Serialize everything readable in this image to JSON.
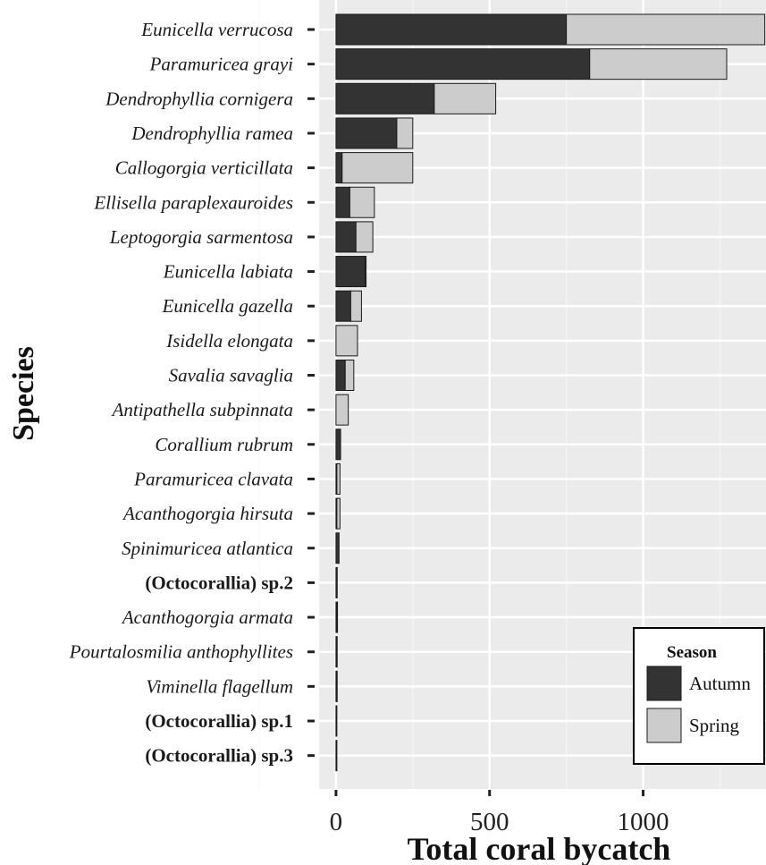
{
  "chart_data": {
    "type": "bar",
    "orientation": "horizontal",
    "stacked": true,
    "xlabel": "Total coral bycatch",
    "ylabel": "Species",
    "xlim": [
      -55,
      1400
    ],
    "x_ticks": [
      0,
      500,
      1000
    ],
    "grid": true,
    "legend_position": "bottom-right",
    "categories": [
      {
        "name": "Eunicella verrucosa",
        "style": "italic"
      },
      {
        "name": "Paramuricea grayi",
        "style": "italic"
      },
      {
        "name": "Dendrophyllia cornigera",
        "style": "italic"
      },
      {
        "name": "Dendrophyllia ramea",
        "style": "italic"
      },
      {
        "name": "Callogorgia verticillata",
        "style": "italic"
      },
      {
        "name": "Ellisella paraplexauroides",
        "style": "italic"
      },
      {
        "name": "Leptogorgia sarmentosa",
        "style": "italic"
      },
      {
        "name": "Eunicella labiata",
        "style": "italic"
      },
      {
        "name": "Eunicella gazella",
        "style": "italic"
      },
      {
        "name": "Isidella elongata",
        "style": "italic"
      },
      {
        "name": "Savalia savaglia",
        "style": "italic"
      },
      {
        "name": "Antipathella subpinnata",
        "style": "italic"
      },
      {
        "name": "Corallium rubrum",
        "style": "italic"
      },
      {
        "name": "Paramuricea clavata",
        "style": "italic"
      },
      {
        "name": "Acanthogorgia hirsuta",
        "style": "italic"
      },
      {
        "name": "Spinimuricea atlantica",
        "style": "italic"
      },
      {
        "name": "(Octocorallia) sp.2",
        "style": "bold"
      },
      {
        "name": "Acanthogorgia armata",
        "style": "italic"
      },
      {
        "name": "Pourtalosmilia anthophyllites",
        "style": "italic"
      },
      {
        "name": "Viminella flagellum",
        "style": "italic"
      },
      {
        "name": "(Octocorallia) sp.1",
        "style": "bold"
      },
      {
        "name": "(Octocorallia) sp.3",
        "style": "bold"
      }
    ],
    "series": [
      {
        "name": "Autumn",
        "color": "#333333",
        "values": [
          750,
          826,
          320,
          198,
          20,
          45,
          65,
          95,
          48,
          0,
          30,
          0,
          15,
          3,
          3,
          10,
          4,
          2,
          1,
          1,
          1,
          1
        ]
      },
      {
        "name": "Spring",
        "color": "#cccccc",
        "values": [
          646,
          446,
          200,
          52,
          230,
          80,
          55,
          3,
          35,
          70,
          28,
          40,
          0,
          10,
          10,
          0,
          0,
          1,
          2,
          1,
          0,
          0
        ]
      }
    ],
    "legend": {
      "title": "Season",
      "entries": [
        "Autumn",
        "Spring"
      ]
    }
  }
}
